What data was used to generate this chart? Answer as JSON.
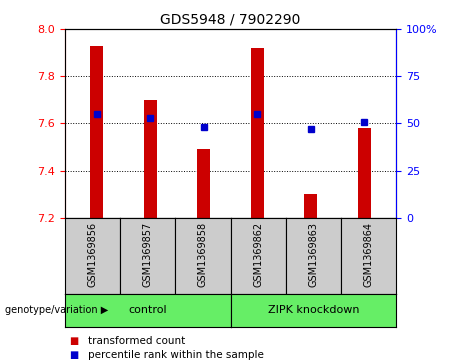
{
  "title": "GDS5948 / 7902290",
  "samples": [
    "GSM1369856",
    "GSM1369857",
    "GSM1369858",
    "GSM1369862",
    "GSM1369863",
    "GSM1369864"
  ],
  "bar_values": [
    7.93,
    7.7,
    7.49,
    7.92,
    7.3,
    7.58
  ],
  "percentile_values": [
    55,
    53,
    48,
    55,
    47,
    51
  ],
  "ymin": 7.2,
  "ymax": 8.0,
  "yticks": [
    7.2,
    7.4,
    7.6,
    7.8,
    8.0
  ],
  "y2min": 0,
  "y2max": 100,
  "y2ticks": [
    0,
    25,
    50,
    75,
    100
  ],
  "bar_color": "#cc0000",
  "dot_color": "#0000cc",
  "bar_width": 0.25,
  "groups": [
    {
      "label": "control",
      "indices": [
        0,
        1,
        2
      ],
      "color": "#66ee66"
    },
    {
      "label": "ZIPK knockdown",
      "indices": [
        3,
        4,
        5
      ],
      "color": "#66ee66"
    }
  ],
  "genotype_label": "genotype/variation",
  "legend_items": [
    {
      "label": "transformed count",
      "color": "#cc0000"
    },
    {
      "label": "percentile rank within the sample",
      "color": "#0000cc"
    }
  ],
  "grid_color": "black",
  "grid_linestyle": ":",
  "sample_bg_color": "#cccccc",
  "plot_bg_color": "#ffffff",
  "title_fontsize": 10,
  "axis_label_fontsize": 8,
  "sample_fontsize": 7,
  "group_fontsize": 8,
  "legend_fontsize": 7.5
}
